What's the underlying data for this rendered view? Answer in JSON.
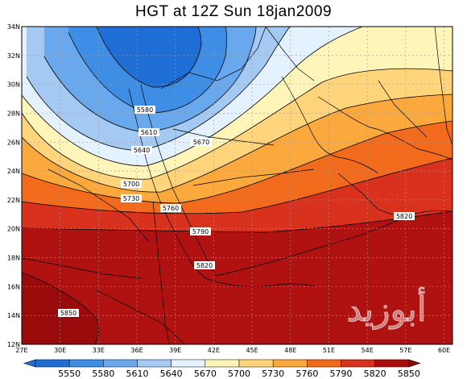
{
  "title": "HGT at 12Z Sun 18jan2009",
  "watermark": "أبوزيد",
  "lat_ticks": [
    "34N",
    "32N",
    "30N",
    "28N",
    "26N",
    "24N",
    "22N",
    "20N",
    "18N",
    "16N",
    "14N",
    "12N"
  ],
  "lon_ticks": [
    "27E",
    "30E",
    "33E",
    "36E",
    "39E",
    "42E",
    "45E",
    "48E",
    "51E",
    "54E",
    "57E",
    "60E"
  ],
  "contour_labels": [
    "5580",
    "5610",
    "5640",
    "5670",
    "5700",
    "5730",
    "5760",
    "5790",
    "5820",
    "5820",
    "5850"
  ],
  "legend": {
    "labels": [
      "5550",
      "5580",
      "5610",
      "5640",
      "5670",
      "5700",
      "5730",
      "5760",
      "5790",
      "5820",
      "5850"
    ],
    "colors": [
      "#1e6ed6",
      "#3f8ee6",
      "#6aa8ee",
      "#a4c9f3",
      "#e4f2ff",
      "#fff5b8",
      "#ffd47a",
      "#fba83c",
      "#f26a1c",
      "#d8321e",
      "#a80e0e"
    ]
  }
}
